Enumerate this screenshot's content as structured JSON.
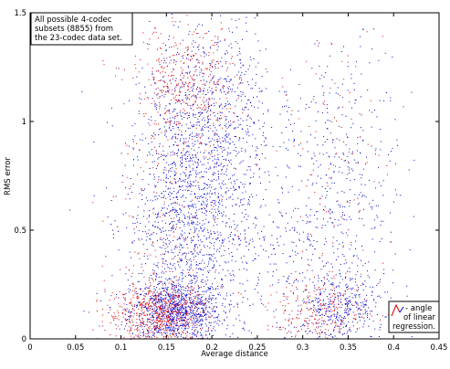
{
  "chart_data": {
    "type": "scatter",
    "xlabel": "Average distance",
    "ylabel": "RMS error",
    "xlim": [
      0,
      0.45
    ],
    "ylim": [
      0,
      1.5
    ],
    "xticks": [
      0,
      0.05,
      0.1,
      0.15,
      0.2,
      0.25,
      0.3,
      0.35,
      0.4,
      0.45
    ],
    "xtick_labels": [
      "0",
      "0.05",
      "0.1",
      "0.15",
      "0.2",
      "0.25",
      "0.3",
      "0.35",
      "0.4",
      "0.45"
    ],
    "yticks": [
      0,
      0.5,
      1,
      1.5
    ],
    "ytick_labels": [
      "0",
      "0.5",
      "1",
      "1.5"
    ],
    "grid": false,
    "series": [
      {
        "color": "#0000cc",
        "clusters": [
          {
            "cx": 0.16,
            "cy": 0.13,
            "sx": 0.025,
            "sy": 0.07,
            "n": 900
          },
          {
            "cx": 0.175,
            "cy": 0.55,
            "sx": 0.035,
            "sy": 0.28,
            "n": 1400
          },
          {
            "cx": 0.2,
            "cy": 1.05,
            "sx": 0.035,
            "sy": 0.22,
            "n": 700
          },
          {
            "cx": 0.34,
            "cy": 0.15,
            "sx": 0.025,
            "sy": 0.08,
            "n": 350
          },
          {
            "cx": 0.345,
            "cy": 0.65,
            "sx": 0.03,
            "sy": 0.35,
            "n": 450
          },
          {
            "cx": 0.28,
            "cy": 0.5,
            "sx": 0.03,
            "sy": 0.3,
            "n": 180
          }
        ]
      },
      {
        "color": "#dd0000",
        "clusters": [
          {
            "cx": 0.14,
            "cy": 0.12,
            "sx": 0.028,
            "sy": 0.07,
            "n": 600
          },
          {
            "cx": 0.17,
            "cy": 1.15,
            "sx": 0.03,
            "sy": 0.15,
            "n": 450
          },
          {
            "cx": 0.32,
            "cy": 0.13,
            "sx": 0.03,
            "sy": 0.07,
            "n": 220
          },
          {
            "cx": 0.33,
            "cy": 0.8,
            "sx": 0.03,
            "sy": 0.35,
            "n": 120
          },
          {
            "cx": 0.15,
            "cy": 0.5,
            "sx": 0.03,
            "sy": 0.25,
            "n": 150
          }
        ]
      }
    ],
    "annotation": {
      "lines": [
        "All possible 4-codec",
        "subsets (8855) from",
        "the 23-codec data set."
      ]
    },
    "legend": {
      "position": "bottom-right",
      "lines": [
        "- angle",
        "of linear",
        "regression."
      ],
      "colors": [
        "#dd0000",
        "#0000cc"
      ]
    }
  }
}
